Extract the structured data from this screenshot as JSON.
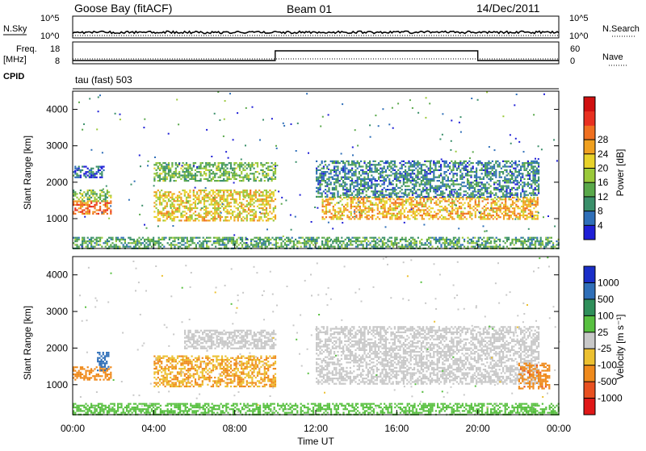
{
  "header": {
    "station": "Goose Bay (fitACF)",
    "beam": "Beam 01",
    "date": "14/Dec/2011"
  },
  "strip_labels": {
    "nsky": "N.Sky",
    "nsearch": "N.Search",
    "freq_line1": "Freq.",
    "freq_line2": "[MHz]",
    "nave": "Nave",
    "cpid": "CPID",
    "cpid_value": "tau (fast) 503"
  },
  "chart_data": [
    {
      "type": "line",
      "title": "N.Sky / N.Search",
      "yticks_left": [
        "10^5",
        "10^0"
      ],
      "yticks_right": [
        "10^5",
        "10^0"
      ]
    },
    {
      "type": "line",
      "title": "Freq. / Nave",
      "yticks_left": [
        "18",
        "8"
      ],
      "yticks_right": [
        "60",
        "0"
      ],
      "series": [
        {
          "name": "Nave",
          "x_hours": [
            0,
            10,
            10,
            20,
            20,
            24
          ],
          "values": [
            0,
            0,
            60,
            60,
            0,
            0
          ]
        }
      ]
    },
    {
      "type": "heatmap",
      "title": "Power",
      "xlabel": "",
      "ylabel": "Slant Range [km]",
      "yticks": [
        "1000",
        "2000",
        "3000",
        "4000"
      ],
      "xlim": [
        0,
        24
      ],
      "ylim": [
        180,
        4500
      ],
      "colorbar": {
        "label": "Power [dB]",
        "ticks": [
          "4",
          "8",
          "12",
          "16",
          "20",
          "24",
          "28"
        ],
        "colors": [
          "#1f1fd6",
          "#2f6fb8",
          "#3a8f6a",
          "#59a84a",
          "#9ac93a",
          "#e8d22a",
          "#f0a020",
          "#f07020",
          "#e83020",
          "#d01010"
        ]
      },
      "regions": [
        {
          "t0": 0.0,
          "t1": 1.9,
          "r0": 1150,
          "r1": 1500,
          "level": 24
        },
        {
          "t0": 0.0,
          "t1": 1.9,
          "r0": 1500,
          "r1": 1800,
          "level": 12
        },
        {
          "t0": 0.0,
          "t1": 1.5,
          "r0": 2150,
          "r1": 2450,
          "level": 5
        },
        {
          "t0": 4.0,
          "t1": 10.0,
          "r0": 950,
          "r1": 1800,
          "level": 18
        },
        {
          "t0": 4.0,
          "t1": 10.0,
          "r0": 2050,
          "r1": 2550,
          "level": 12
        },
        {
          "t0": 12.3,
          "t1": 23.0,
          "r0": 1000,
          "r1": 1600,
          "level": 20
        },
        {
          "t0": 12.0,
          "t1": 23.0,
          "r0": 1600,
          "r1": 2600,
          "level": 7
        },
        {
          "t0": 0.0,
          "t1": 24.0,
          "r0": 200,
          "r1": 500,
          "level": 10
        }
      ]
    },
    {
      "type": "heatmap",
      "title": "Velocity",
      "xlabel": "Time UT",
      "ylabel": "Slant Range [km]",
      "xticks": [
        "00:00",
        "04:00",
        "08:00",
        "12:00",
        "16:00",
        "20:00",
        "00:00"
      ],
      "yticks": [
        "1000",
        "2000",
        "3000",
        "4000"
      ],
      "xlim": [
        0,
        24
      ],
      "ylim": [
        180,
        4500
      ],
      "colorbar": {
        "label": "Velocity [m s⁻¹]",
        "ticks": [
          "1000",
          "500",
          "100",
          "25",
          "-25",
          "-100",
          "-500",
          "-1000"
        ],
        "colors": [
          "#1a2ec8",
          "#2f6fb8",
          "#2f8f5a",
          "#58c040",
          "#c8c8c8",
          "#ecc030",
          "#ef8a1c",
          "#e85020",
          "#e01818"
        ]
      },
      "regions": [
        {
          "t0": 0.0,
          "t1": 1.9,
          "r0": 1150,
          "r1": 1500,
          "level": -300
        },
        {
          "t0": 1.2,
          "t1": 1.8,
          "r0": 1400,
          "r1": 1900,
          "level": 700
        },
        {
          "t0": 4.0,
          "t1": 10.0,
          "r0": 950,
          "r1": 1800,
          "level": -100
        },
        {
          "t0": 5.5,
          "t1": 10.0,
          "r0": 2000,
          "r1": 2500,
          "level": 0
        },
        {
          "t0": 12.0,
          "t1": 23.0,
          "r0": 1000,
          "r1": 2600,
          "level": 0
        },
        {
          "t0": 22.0,
          "t1": 23.5,
          "r0": 900,
          "r1": 1600,
          "level": -400
        },
        {
          "t0": 0.0,
          "t1": 24.0,
          "r0": 200,
          "r1": 500,
          "level": 60
        }
      ]
    }
  ]
}
